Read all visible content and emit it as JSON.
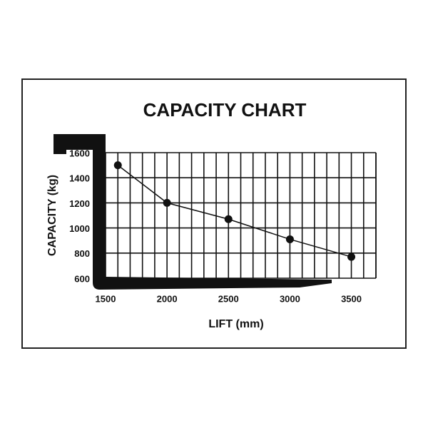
{
  "chart_data": {
    "type": "line",
    "title": "CAPACITY CHART",
    "x_label": "LIFT (mm)",
    "y_label": "CAPACITY (kg)",
    "x": [
      1600,
      2000,
      2500,
      3000,
      3500
    ],
    "series": [
      {
        "color": "#111111",
        "values": [
          1500,
          1200,
          1070,
          910,
          770
        ]
      }
    ],
    "xlim": [
      1500,
      3700
    ],
    "xticks": [
      1500,
      2000,
      2500,
      3000,
      3500
    ],
    "ylim": [
      600,
      1600
    ],
    "yticks": [
      600,
      800,
      1000,
      1200,
      1400,
      1600
    ],
    "grid": true
  }
}
